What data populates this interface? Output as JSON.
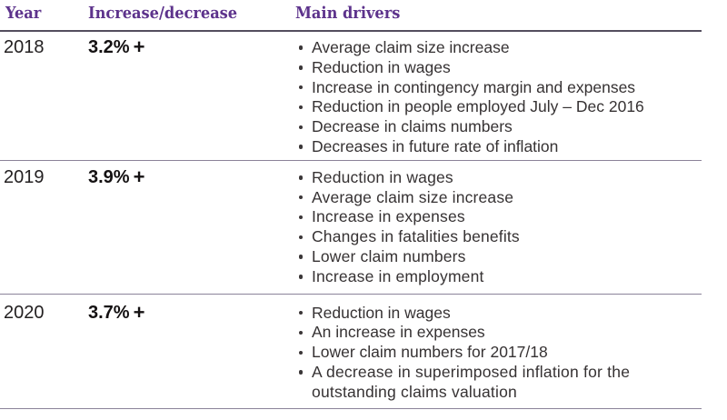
{
  "page": {
    "background": "#ffffff"
  },
  "colors": {
    "header_text": "#5d338c",
    "header_rule": "#544e5e",
    "row_rule": "#8b8399",
    "body_text": "#363233",
    "bullet": "#3a3637",
    "year_text": "#232021",
    "pct_text": "#141112"
  },
  "table": {
    "headers": {
      "year": "Year",
      "change": "Increase/decrease",
      "drivers": "Main drivers"
    },
    "rows": [
      {
        "year": "2018",
        "change_value": "3.2%",
        "change_sign": "+",
        "drivers": [
          "Average claim size increase",
          "Reduction in wages",
          "Increase in contingency margin and expenses",
          "Reduction in people employed July – Dec 2016",
          "Decrease in claims numbers",
          "Decreases in future rate of inflation"
        ]
      },
      {
        "year": "2019",
        "change_value": "3.9%",
        "change_sign": "+",
        "drivers": [
          "Reduction in wages",
          "Average claim size increase",
          "Increase in expenses",
          "Changes in fatalities benefits",
          "Lower claim numbers",
          "Increase in employment"
        ]
      },
      {
        "year": "2020",
        "change_value": "3.7%",
        "change_sign": "+",
        "drivers": [
          "Reduction in wages",
          "An increase in expenses",
          "Lower claim numbers for 2017/18",
          "A decrease in superimposed inflation for the outstanding claims valuation"
        ]
      }
    ]
  }
}
